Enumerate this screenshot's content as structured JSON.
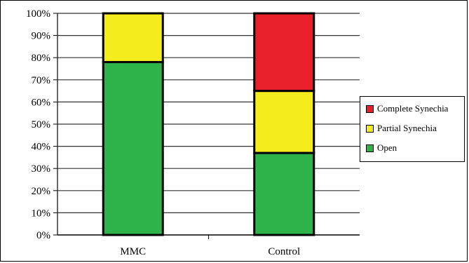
{
  "chart_data": {
    "type": "bar",
    "stacked": true,
    "categories": [
      "MMC",
      "Control"
    ],
    "series": [
      {
        "name": "Open",
        "values": [
          78,
          37
        ],
        "color": "#2db34a"
      },
      {
        "name": "Partial Synechia",
        "values": [
          22,
          28
        ],
        "color": "#f5ec1e"
      },
      {
        "name": "Complete Synechia",
        "values": [
          0,
          35
        ],
        "color": "#e8202a"
      }
    ],
    "ylim": [
      0,
      100
    ],
    "yticks": [
      "0%",
      "10%",
      "20%",
      "30%",
      "40%",
      "50%",
      "60%",
      "70%",
      "80%",
      "90%",
      "100%"
    ],
    "grid": true,
    "legend_position": "right",
    "legend_order": [
      "Complete Synechia",
      "Partial Synechia",
      "Open"
    ],
    "title": "",
    "xlabel": "",
    "ylabel": ""
  }
}
